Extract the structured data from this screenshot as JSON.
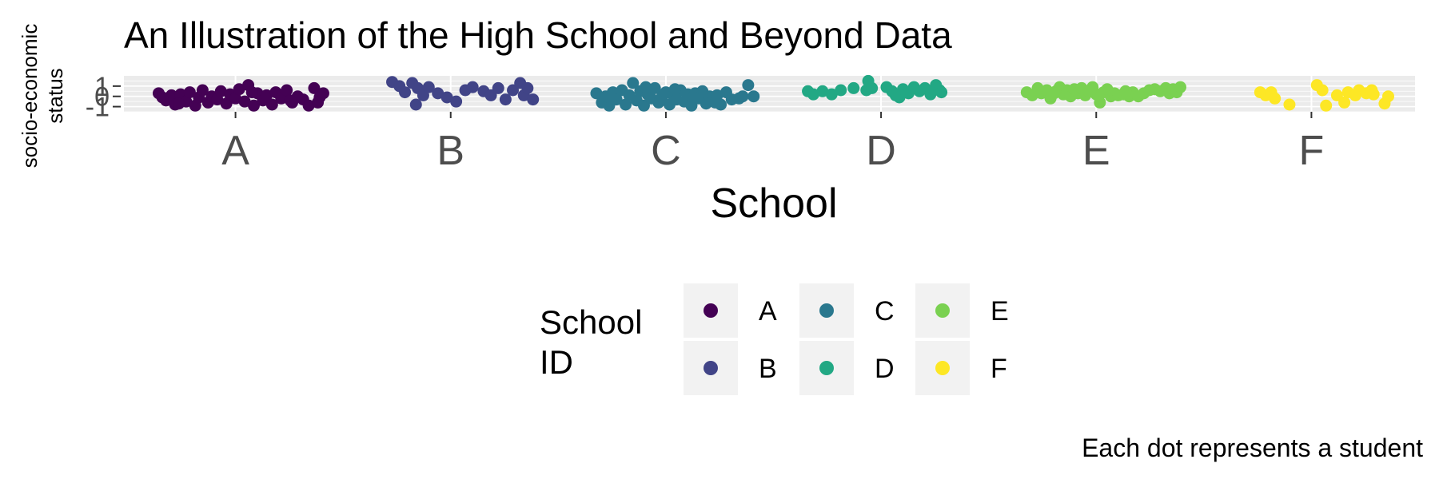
{
  "chart_data": {
    "type": "scatter",
    "title": "An Illustration of the High School and Beyond Data",
    "xlabel": "School",
    "ylabel_lines": [
      "socio-economic",
      "status"
    ],
    "categories": [
      "A",
      "B",
      "C",
      "D",
      "E",
      "F"
    ],
    "y_ticks": [
      "-1",
      "0",
      "1"
    ],
    "ylim": [
      -1.5,
      2.0
    ],
    "grid": true,
    "legend": {
      "title_lines": [
        "School",
        "ID"
      ],
      "placement": "bottom",
      "entries": [
        "A",
        "B",
        "C",
        "D",
        "E",
        "F"
      ]
    },
    "caption": "Each dot represents a student",
    "colors": {
      "A": "#440154",
      "B": "#414487",
      "C": "#2a788e",
      "D": "#22a884",
      "E": "#7ad151",
      "F": "#fde725"
    },
    "series": [
      {
        "school": "A",
        "points": [
          [
            -0.42,
            0.3
          ],
          [
            -0.38,
            -0.4
          ],
          [
            -0.35,
            0.1
          ],
          [
            -0.33,
            -0.8
          ],
          [
            -0.3,
            0.2
          ],
          [
            -0.27,
            -0.5
          ],
          [
            -0.25,
            0.4
          ],
          [
            -0.22,
            -0.9
          ],
          [
            -0.2,
            -0.1
          ],
          [
            -0.18,
            0.6
          ],
          [
            -0.15,
            -0.6
          ],
          [
            -0.13,
            0.0
          ],
          [
            -0.1,
            -0.3
          ],
          [
            -0.08,
            0.5
          ],
          [
            -0.05,
            -0.7
          ],
          [
            -0.03,
            0.2
          ],
          [
            0.0,
            -0.2
          ],
          [
            0.02,
            0.7
          ],
          [
            0.05,
            -0.5
          ],
          [
            0.07,
            1.1
          ],
          [
            0.1,
            -0.9
          ],
          [
            0.12,
            0.3
          ],
          [
            0.15,
            -0.4
          ],
          [
            0.17,
            0.1
          ],
          [
            0.2,
            -0.8
          ],
          [
            0.22,
            0.4
          ],
          [
            0.25,
            -0.2
          ],
          [
            0.28,
            0.6
          ],
          [
            0.31,
            -0.6
          ],
          [
            0.34,
            0.0
          ],
          [
            0.37,
            -0.3
          ],
          [
            0.4,
            -0.9
          ],
          [
            0.43,
            0.8
          ],
          [
            0.46,
            -0.1
          ],
          [
            0.48,
            0.3
          ],
          [
            -0.4,
            -0.1
          ],
          [
            -0.31,
            -0.7
          ],
          [
            0.09,
            0.4
          ],
          [
            0.3,
            -0.4
          ],
          [
            0.45,
            -0.6
          ]
        ]
      },
      {
        "school": "B",
        "points": [
          [
            -0.32,
            1.4
          ],
          [
            -0.28,
            1.0
          ],
          [
            -0.25,
            0.4
          ],
          [
            -0.21,
            1.3
          ],
          [
            -0.18,
            0.8
          ],
          [
            -0.15,
            0.1
          ],
          [
            -0.12,
            0.9
          ],
          [
            -0.19,
            -0.8
          ],
          [
            -0.07,
            0.3
          ],
          [
            -0.02,
            -0.1
          ],
          [
            0.03,
            -0.5
          ],
          [
            0.08,
            0.6
          ],
          [
            0.12,
            0.9
          ],
          [
            0.18,
            0.5
          ],
          [
            0.22,
            0.1
          ],
          [
            0.26,
            0.8
          ],
          [
            0.3,
            -0.3
          ],
          [
            0.34,
            0.6
          ],
          [
            0.38,
            1.3
          ],
          [
            0.4,
            0.1
          ],
          [
            0.42,
            0.8
          ],
          [
            0.45,
            -0.3
          ]
        ]
      },
      {
        "school": "C",
        "points": [
          [
            -0.38,
            0.3
          ],
          [
            -0.35,
            -0.6
          ],
          [
            -0.33,
            0.0
          ],
          [
            -0.31,
            -0.9
          ],
          [
            -0.29,
            0.4
          ],
          [
            -0.27,
            -0.3
          ],
          [
            -0.24,
            0.6
          ],
          [
            -0.22,
            -0.8
          ],
          [
            -0.2,
            0.1
          ],
          [
            -0.18,
            1.3
          ],
          [
            -0.16,
            -0.4
          ],
          [
            -0.14,
            0.5
          ],
          [
            -0.12,
            -0.9
          ],
          [
            -0.1,
            0.2
          ],
          [
            -0.08,
            -0.2
          ],
          [
            -0.06,
            0.8
          ],
          [
            -0.04,
            -0.6
          ],
          [
            -0.02,
            0.0
          ],
          [
            0.0,
            0.4
          ],
          [
            0.02,
            -0.8
          ],
          [
            0.04,
            0.1
          ],
          [
            0.06,
            -0.3
          ],
          [
            0.08,
            0.6
          ],
          [
            0.1,
            -0.5
          ],
          [
            0.12,
            0.2
          ],
          [
            0.14,
            -0.9
          ],
          [
            0.16,
            0.3
          ],
          [
            0.18,
            -0.2
          ],
          [
            0.2,
            0.5
          ],
          [
            0.22,
            -0.7
          ],
          [
            0.24,
            0.0
          ],
          [
            0.26,
            -0.4
          ],
          [
            0.28,
            0.1
          ],
          [
            0.3,
            -0.8
          ],
          [
            0.33,
            0.4
          ],
          [
            0.36,
            -0.3
          ],
          [
            0.4,
            -0.2
          ],
          [
            0.42,
            0.0
          ],
          [
            0.45,
            1.1
          ],
          [
            0.48,
            0.0
          ],
          [
            -0.3,
            -0.2
          ],
          [
            -0.11,
            0.9
          ],
          [
            0.05,
            0.7
          ],
          [
            0.15,
            -0.1
          ],
          [
            0.27,
            -0.6
          ]
        ]
      },
      {
        "school": "D",
        "points": [
          [
            -0.4,
            0.5
          ],
          [
            -0.37,
            0.2
          ],
          [
            -0.32,
            0.5
          ],
          [
            -0.27,
            0.2
          ],
          [
            -0.22,
            0.6
          ],
          [
            -0.15,
            0.8
          ],
          [
            -0.08,
            0.6
          ],
          [
            -0.07,
            1.5
          ],
          [
            -0.05,
            0.8
          ],
          [
            0.03,
            0.9
          ],
          [
            0.06,
            0.5
          ],
          [
            0.08,
            0.1
          ],
          [
            0.1,
            -0.1
          ],
          [
            0.12,
            0.7
          ],
          [
            0.15,
            0.3
          ],
          [
            0.18,
            0.9
          ],
          [
            0.21,
            0.5
          ],
          [
            0.24,
            0.8
          ],
          [
            0.27,
            0.2
          ],
          [
            0.3,
            1.1
          ],
          [
            0.32,
            0.6
          ],
          [
            0.33,
            0.4
          ]
        ]
      },
      {
        "school": "E",
        "points": [
          [
            -0.38,
            0.4
          ],
          [
            -0.35,
            0.1
          ],
          [
            -0.32,
            0.8
          ],
          [
            -0.3,
            0.3
          ],
          [
            -0.27,
            0.6
          ],
          [
            -0.25,
            -0.2
          ],
          [
            -0.22,
            0.5
          ],
          [
            -0.2,
            0.9
          ],
          [
            -0.18,
            0.2
          ],
          [
            -0.16,
            0.6
          ],
          [
            -0.14,
            0.0
          ],
          [
            -0.12,
            0.7
          ],
          [
            -0.1,
            0.3
          ],
          [
            -0.08,
            0.8
          ],
          [
            -0.06,
            0.1
          ],
          [
            -0.04,
            0.5
          ],
          [
            -0.02,
            0.9
          ],
          [
            0.0,
            0.2
          ],
          [
            0.02,
            -0.6
          ],
          [
            0.04,
            0.4
          ],
          [
            0.06,
            0.7
          ],
          [
            0.08,
            0.0
          ],
          [
            0.1,
            0.3
          ],
          [
            0.12,
            0.1
          ],
          [
            0.15,
            0.2
          ],
          [
            0.18,
            0.0
          ],
          [
            0.2,
            0.4
          ],
          [
            0.23,
            0.0
          ],
          [
            0.26,
            0.3
          ],
          [
            0.29,
            0.6
          ],
          [
            0.32,
            0.7
          ],
          [
            0.35,
            0.5
          ],
          [
            0.38,
            0.8
          ],
          [
            0.4,
            0.3
          ],
          [
            0.42,
            0.7
          ],
          [
            0.44,
            0.4
          ],
          [
            0.46,
            0.9
          ],
          [
            -0.23,
            0.3
          ],
          [
            -0.03,
            0.6
          ],
          [
            0.16,
            0.5
          ]
        ]
      },
      {
        "school": "F",
        "points": [
          [
            -0.28,
            0.4
          ],
          [
            -0.25,
            0.1
          ],
          [
            -0.22,
            0.4
          ],
          [
            -0.2,
            -0.2
          ],
          [
            -0.12,
            -0.8
          ],
          [
            0.03,
            1.1
          ],
          [
            0.06,
            0.6
          ],
          [
            0.08,
            -0.9
          ],
          [
            0.14,
            0.1
          ],
          [
            0.18,
            -0.6
          ],
          [
            0.2,
            0.4
          ],
          [
            0.24,
            0.1
          ],
          [
            0.26,
            0.6
          ],
          [
            0.3,
            0.3
          ],
          [
            0.33,
            0.6
          ],
          [
            0.34,
            0.2
          ],
          [
            0.4,
            -0.7
          ],
          [
            0.42,
            0.0
          ]
        ]
      }
    ]
  }
}
